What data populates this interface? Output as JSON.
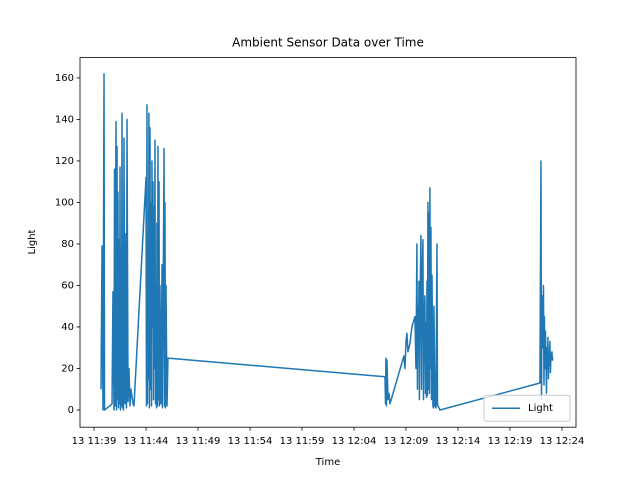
{
  "chart_data": {
    "type": "line",
    "title": "Ambient Sensor Data over Time",
    "x_label": "Time",
    "y_label": "Light",
    "x": [
      39.67,
      39.77,
      39.86,
      39.96,
      40.01,
      40.53,
      40.73,
      40.82,
      40.92,
      40.97,
      41.02,
      41.11,
      41.16,
      41.21,
      41.26,
      41.3,
      41.35,
      41.4,
      41.45,
      41.5,
      41.54,
      41.59,
      41.64,
      41.69,
      41.74,
      41.78,
      41.83,
      41.88,
      41.98,
      42.07,
      42.12,
      42.17,
      42.27,
      42.36,
      42.46,
      42.55,
      42.75,
      42.84,
      44.0,
      44.04,
      44.09,
      44.14,
      44.19,
      44.24,
      44.28,
      44.33,
      44.38,
      44.43,
      44.48,
      44.53,
      44.57,
      44.62,
      44.67,
      44.72,
      44.77,
      44.81,
      44.86,
      44.91,
      44.96,
      45.01,
      45.05,
      45.1,
      45.15,
      45.2,
      45.25,
      45.29,
      45.34,
      45.44,
      45.54,
      45.58,
      45.63,
      45.73,
      45.78,
      45.82,
      45.87,
      45.92,
      46.02,
      46.11,
      66.98,
      67.03,
      67.07,
      67.12,
      67.17,
      67.27,
      67.36,
      67.46,
      68.8,
      68.9,
      69.0,
      69.09,
      69.19,
      69.38,
      69.57,
      69.86,
      69.96,
      70.05,
      70.1,
      70.15,
      70.2,
      70.25,
      70.29,
      70.34,
      70.44,
      70.49,
      70.53,
      70.63,
      70.68,
      70.73,
      70.82,
      70.87,
      70.92,
      70.97,
      71.02,
      71.06,
      71.11,
      71.16,
      71.21,
      71.26,
      71.3,
      71.35,
      71.4,
      71.45,
      71.5,
      71.54,
      71.59,
      71.64,
      71.69,
      71.78,
      71.88,
      71.98,
      72.03,
      72.07,
      72.27,
      81.88,
      81.98,
      82.03,
      82.07,
      82.12,
      82.17,
      82.22,
      82.27,
      82.31,
      82.36,
      82.41,
      82.46,
      82.51,
      82.55,
      82.6,
      82.65,
      82.7,
      82.75,
      82.79,
      82.84,
      82.89,
      82.94,
      83.04,
      83.08,
      83.13
    ],
    "series": [
      {
        "name": "Light",
        "color": "#1f77b4",
        "values": [
          10,
          79,
          0,
          162,
          0,
          2,
          3,
          57,
          0,
          116,
          2,
          139,
          0,
          127,
          5,
          105,
          1,
          82,
          3,
          117,
          0,
          78,
          2,
          143,
          1,
          60,
          0,
          131,
          3,
          85,
          1,
          140,
          4,
          20,
          2,
          10,
          3,
          2,
          112,
          2,
          147,
          3,
          73,
          15,
          143,
          1,
          136,
          10,
          100,
          2,
          120,
          40,
          110,
          5,
          98,
          20,
          130,
          3,
          60,
          1,
          90,
          2,
          127,
          5,
          110,
          2,
          60,
          3,
          70,
          1,
          40,
          126,
          2,
          100,
          1,
          60,
          2,
          25,
          16,
          3,
          25,
          2,
          24,
          5,
          8,
          3,
          26,
          20,
          33,
          37,
          28,
          32,
          40,
          45,
          20,
          80,
          10,
          50,
          30,
          62,
          5,
          47,
          84,
          10,
          50,
          82,
          5,
          40,
          55,
          8,
          42,
          6,
          62,
          7,
          100,
          10,
          95,
          8,
          107,
          20,
          88,
          5,
          65,
          40,
          2,
          1,
          50,
          2,
          1,
          80,
          2,
          2,
          0,
          13,
          120,
          5,
          40,
          55,
          30,
          60,
          12,
          45,
          20,
          38,
          25,
          8,
          30,
          20,
          35,
          15,
          28,
          22,
          33,
          18,
          26,
          28,
          24,
          25
        ]
      }
    ],
    "xlim": [
      37.65,
      85.35
    ],
    "xticks": [
      {
        "value": 39,
        "label": "13 11:39"
      },
      {
        "value": 44,
        "label": "13 11:44"
      },
      {
        "value": 49,
        "label": "13 11:49"
      },
      {
        "value": 54,
        "label": "13 11:54"
      },
      {
        "value": 59,
        "label": "13 11:59"
      },
      {
        "value": 64,
        "label": "13 12:04"
      },
      {
        "value": 69,
        "label": "13 12:09"
      },
      {
        "value": 74,
        "label": "13 12:14"
      },
      {
        "value": 79,
        "label": "13 12:19"
      },
      {
        "value": 84,
        "label": "13 12:24"
      }
    ],
    "ylim": [
      -8.3,
      169.8
    ],
    "yticks": [
      0,
      20,
      40,
      60,
      80,
      100,
      120,
      140,
      160
    ],
    "legend": "lower right"
  }
}
